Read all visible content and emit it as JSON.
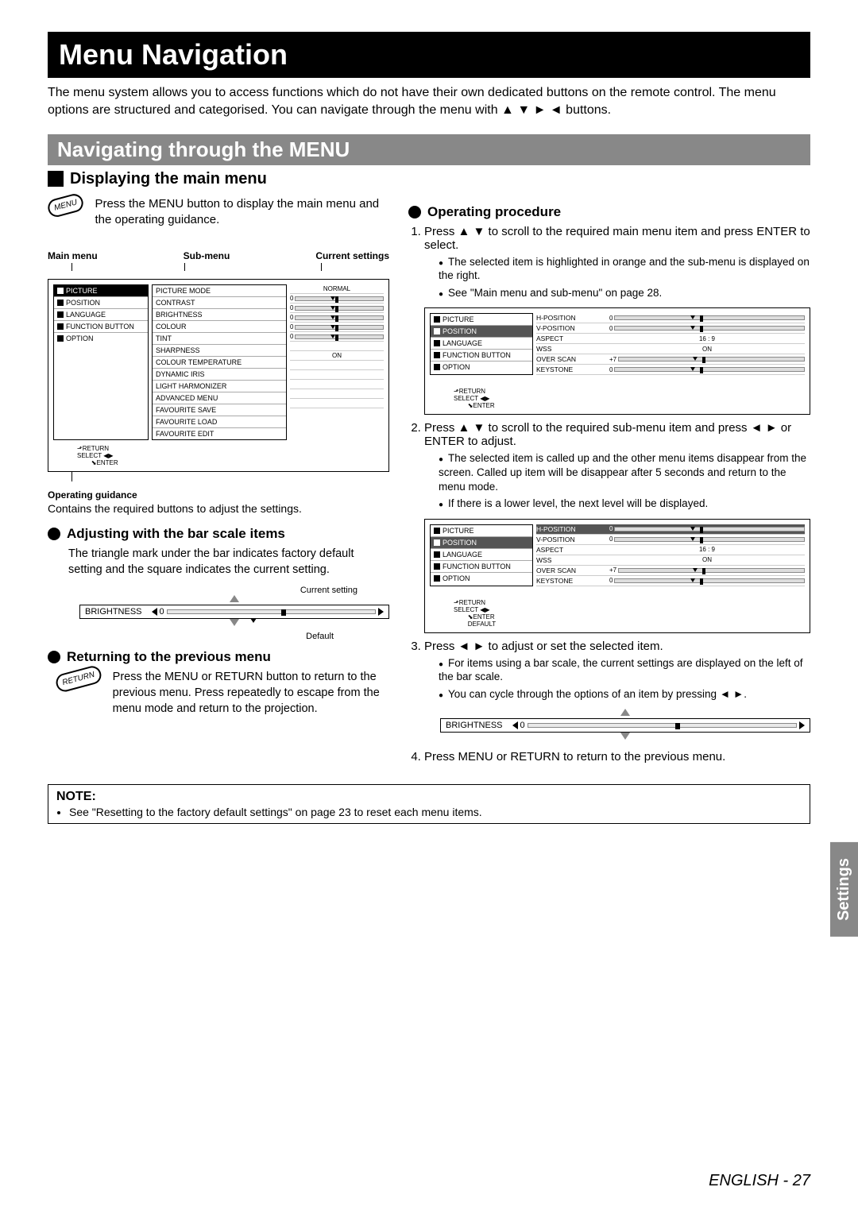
{
  "title": "Menu Navigation",
  "intro": "The menu system allows you to access functions which do not have their own dedicated buttons on the remote control. The menu options are structured and categorised. You can navigate through the menu with ▲ ▼ ► ◄ buttons.",
  "section1": "Navigating through the MENU",
  "displaying_head": "Displaying the main menu",
  "menu_button_label": "MENU",
  "displaying_text": "Press the MENU button to display the main menu and the operating guidance.",
  "diagram_labels": {
    "main": "Main menu",
    "sub": "Sub-menu",
    "current": "Current settings"
  },
  "main_menu_items": [
    "PICTURE",
    "POSITION",
    "LANGUAGE",
    "FUNCTION BUTTON",
    "OPTION"
  ],
  "sub_menu_items": [
    "PICTURE MODE",
    "CONTRAST",
    "BRIGHTNESS",
    "COLOUR",
    "TINT",
    "SHARPNESS",
    "COLOUR TEMPERATURE",
    "DYNAMIC IRIS",
    "LIGHT HARMONIZER",
    "ADVANCED MENU",
    "FAVOURITE SAVE",
    "FAVOURITE LOAD",
    "FAVOURITE EDIT"
  ],
  "sub_menu_values": [
    "NORMAL",
    "0",
    "0",
    "0",
    "0",
    "0",
    "",
    "ON",
    "",
    "",
    "",
    "",
    ""
  ],
  "nav_hints": {
    "return": "RETURN",
    "select": "SELECT",
    "enter": "ENTER",
    "default": "DEFAULT"
  },
  "og_label": "Operating guidance",
  "og_text": "Contains the required buttons to adjust the settings.",
  "adjusting_head": "Adjusting with the bar scale items",
  "adjusting_text": "The triangle mark under the bar indicates factory default setting and the square indicates the current setting.",
  "bd": {
    "current": "Current setting",
    "default": "Default",
    "label": "BRIGHTNESS",
    "value": "0"
  },
  "returning_head": "Returning to the previous menu",
  "return_button_label": "RETURN",
  "returning_text": "Press the MENU or RETURN button to return to the previous menu. Press repeatedly to escape from the menu mode and return to the projection.",
  "operating_head": "Operating procedure",
  "step1": "Press ▲ ▼ to scroll to the required main menu item and press ENTER to select.",
  "step1_sub": [
    "The selected item is highlighted in orange and the sub-menu is displayed on the right.",
    "See \"Main menu and sub-menu\" on page 28."
  ],
  "pos_menu_items": [
    "H-POSITION",
    "V-POSITION",
    "ASPECT",
    "WSS",
    "OVER SCAN",
    "KEYSTONE"
  ],
  "pos_menu_values": [
    "0",
    "0",
    "16 : 9",
    "ON",
    "+7",
    "0"
  ],
  "step2": "Press ▲ ▼ to scroll to the required sub-menu item and press ◄ ► or ENTER to adjust.",
  "step2_sub": [
    "The selected item is called up and the other menu items disappear from the screen. Called up item will be disappear after 5 seconds and return to the menu mode.",
    "If there is a lower level, the next level will be displayed."
  ],
  "step3": "Press ◄ ► to adjust or set the selected item.",
  "step3_sub": [
    "For items using a bar scale, the current settings are displayed on the left of the bar scale.",
    "You can cycle through the options of an item by pressing ◄ ►."
  ],
  "step4": "Press MENU or RETURN to return to the previous menu.",
  "note_title": "NOTE:",
  "note_item": "See \"Resetting to the factory default settings\" on page 23 to reset each menu items.",
  "side_tab": "Settings",
  "footer": "ENGLISH - 27"
}
